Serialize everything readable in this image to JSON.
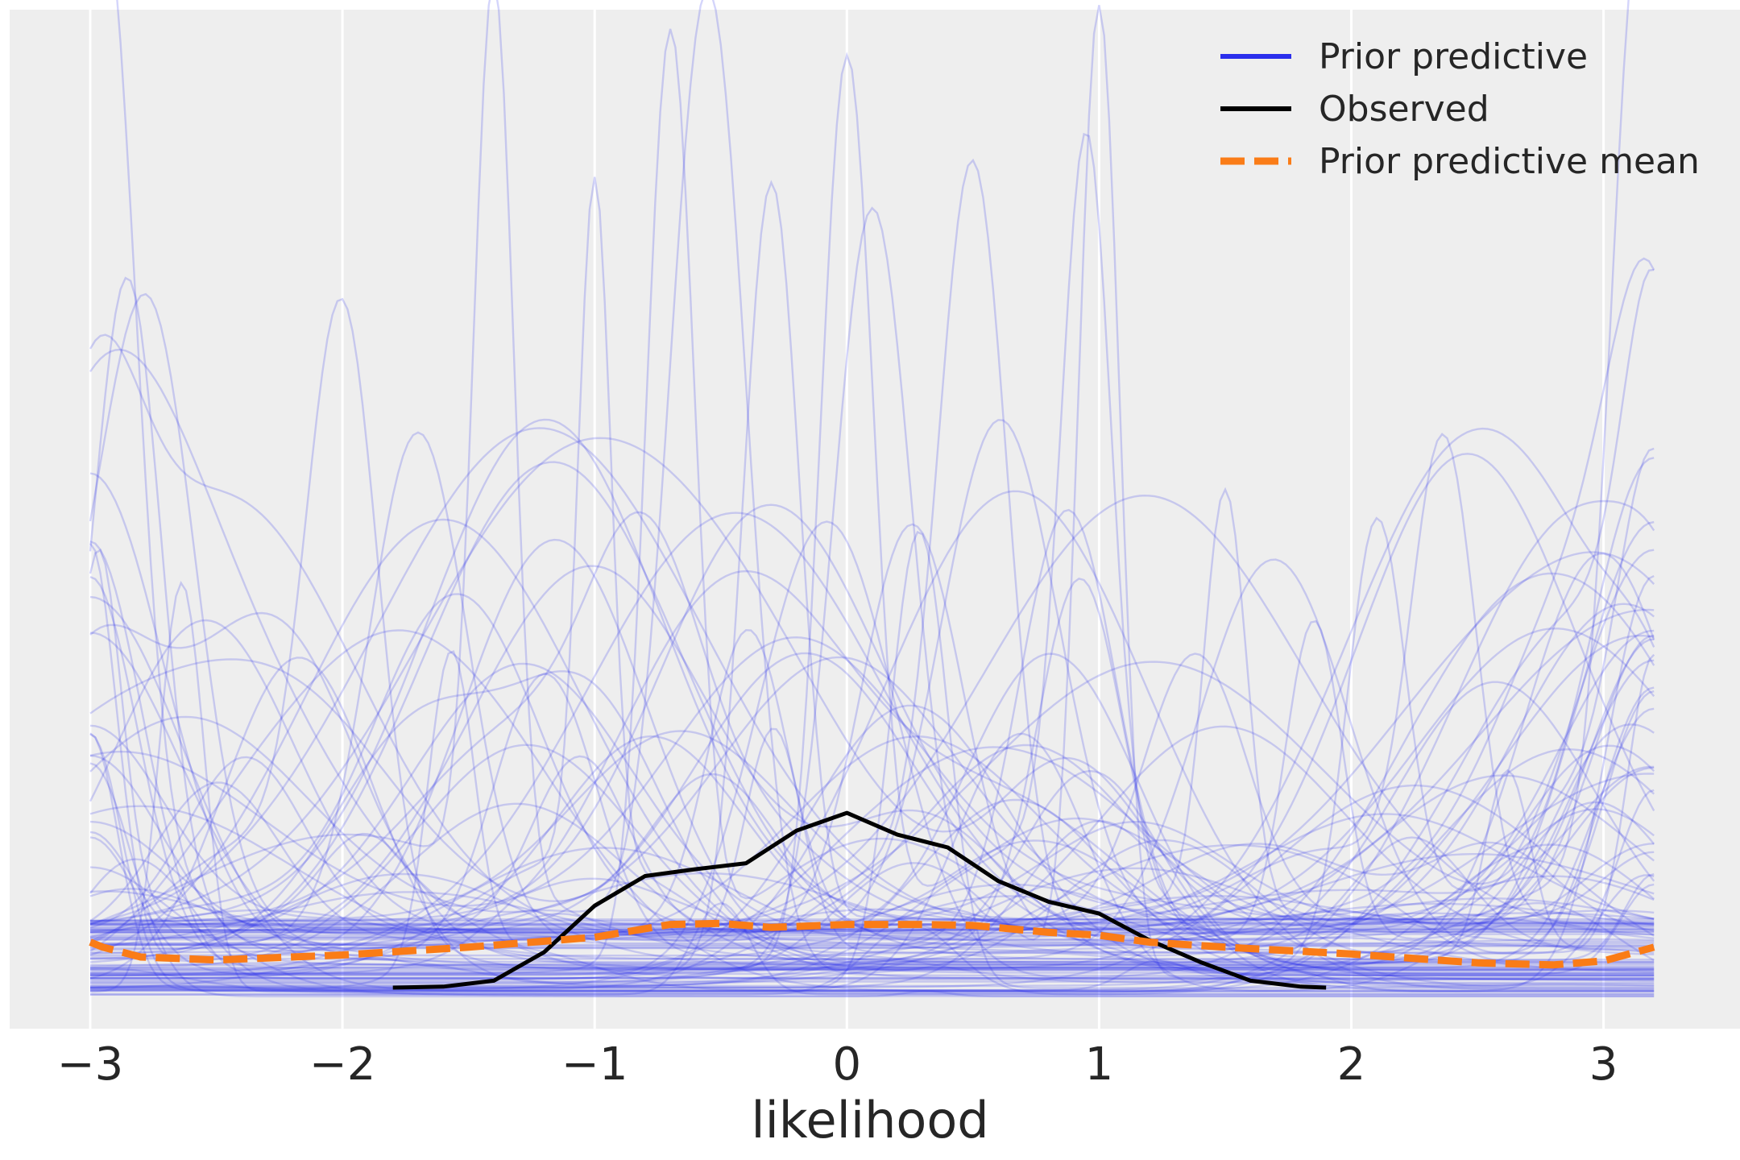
{
  "chart_data": {
    "type": "line",
    "xlabel": "likelihood",
    "ylabel": "",
    "xlim": [
      -3.3,
      3.5
    ],
    "ylim": [
      0,
      1.0
    ],
    "x_ticks": [
      -3,
      -2,
      -1,
      0,
      1,
      2,
      3
    ],
    "x_tick_labels": [
      "−3",
      "−2",
      "−1",
      "0",
      "1",
      "2",
      "3"
    ],
    "y_ticks_visible": false,
    "grid": "x-only, white on light gray background",
    "legend": {
      "placement": "top-right",
      "entries": [
        {
          "label": "Prior predictive",
          "style": "solid",
          "color": "#2a2eec"
        },
        {
          "label": "Observed",
          "style": "solid",
          "color": "#000000"
        },
        {
          "label": "Prior predictive mean",
          "style": "dashed",
          "color": "#fa7c17"
        }
      ]
    },
    "series": [
      {
        "name": "Observed",
        "color": "#000000",
        "x": [
          -1.8,
          -1.6,
          -1.4,
          -1.2,
          -1.0,
          -0.8,
          -0.6,
          -0.4,
          -0.2,
          0.0,
          0.2,
          0.4,
          0.6,
          0.8,
          1.0,
          1.2,
          1.4,
          1.6,
          1.8,
          1.9
        ],
        "y": [
          0.009,
          0.01,
          0.016,
          0.045,
          0.092,
          0.122,
          0.129,
          0.135,
          0.168,
          0.186,
          0.164,
          0.151,
          0.117,
          0.096,
          0.084,
          0.057,
          0.035,
          0.016,
          0.01,
          0.009
        ]
      },
      {
        "name": "Prior predictive mean",
        "color": "#fa7c17",
        "x": [
          -3.0,
          -2.95,
          -2.8,
          -2.5,
          -2.0,
          -1.5,
          -1.0,
          -0.7,
          -0.5,
          -0.3,
          0.0,
          0.3,
          0.5,
          0.8,
          1.0,
          1.2,
          1.5,
          2.0,
          2.5,
          2.8,
          3.0,
          3.2
        ],
        "y": [
          0.055,
          0.05,
          0.04,
          0.037,
          0.042,
          0.05,
          0.06,
          0.073,
          0.074,
          0.07,
          0.073,
          0.073,
          0.072,
          0.065,
          0.062,
          0.055,
          0.05,
          0.043,
          0.034,
          0.032,
          0.036,
          0.05
        ]
      }
    ],
    "prior_predictive_samples": {
      "color": "#2a2eec",
      "count": 120,
      "x_range": [
        -3.0,
        3.2
      ],
      "typical_peak_x": [
        -2.95,
        -2.85,
        -2.0,
        -1.4,
        -1.0,
        -0.7,
        -0.55,
        -0.3,
        0.0,
        0.1,
        0.5,
        0.95,
        1.0,
        1.5,
        2.1,
        3.15
      ],
      "typical_peak_y": [
        0.98,
        0.62,
        0.59,
        0.91,
        0.69,
        0.93,
        0.98,
        0.78,
        0.9,
        0.74,
        0.72,
        0.73,
        0.98,
        0.42,
        0.42,
        0.98
      ]
    }
  }
}
